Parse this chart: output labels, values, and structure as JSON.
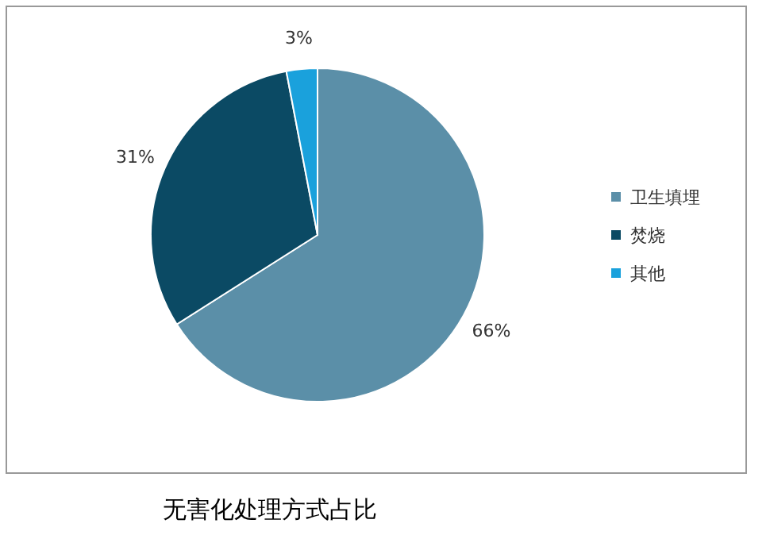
{
  "chart_data": {
    "type": "pie",
    "title": "无害化处理方式占比",
    "categories": [
      "卫生填埋",
      "焚烧",
      "其他"
    ],
    "values": [
      66,
      31,
      3
    ],
    "colors": [
      "#5b8fa8",
      "#0b4a64",
      "#1aa1dc"
    ],
    "value_labels": [
      "66%",
      "31%",
      "3%"
    ],
    "legend": "right"
  }
}
